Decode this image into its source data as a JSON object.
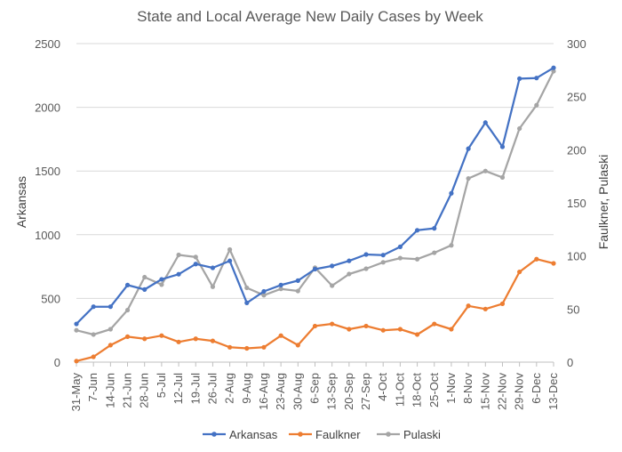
{
  "chart_data": {
    "type": "line",
    "title": "State and Local Average New Daily Cases by Week",
    "ylabel": "Arkansas",
    "y2label": "Faulkner, Pulaski",
    "ylim": [
      0,
      2500
    ],
    "y2lim": [
      0,
      300
    ],
    "yticks": [
      0,
      500,
      1000,
      1500,
      2000,
      2500
    ],
    "y2ticks": [
      0,
      50,
      100,
      150,
      200,
      250,
      300
    ],
    "grid": true,
    "legend_position": "bottom",
    "categories": [
      "31-May",
      "7-Jun",
      "14-Jun",
      "21-Jun",
      "28-Jun",
      "5-Jul",
      "12-Jul",
      "19-Jul",
      "26-Jul",
      "2-Aug",
      "9-Aug",
      "16-Aug",
      "23-Aug",
      "30-Aug",
      "6-Sep",
      "13-Sep",
      "20-Sep",
      "27-Sep",
      "4-Oct",
      "11-Oct",
      "18-Oct",
      "25-Oct",
      "1-Nov",
      "8-Nov",
      "15-Nov",
      "22-Nov",
      "29-Nov",
      "6-Dec",
      "13-Dec"
    ],
    "series": [
      {
        "name": "Arkansas",
        "axis": "left",
        "color": "#4472C4",
        "values": [
          300,
          435,
          435,
          605,
          570,
          650,
          690,
          770,
          740,
          795,
          465,
          555,
          605,
          640,
          730,
          755,
          795,
          845,
          840,
          905,
          1035,
          1050,
          1325,
          1675,
          1880,
          1690,
          2225,
          2230,
          2310
        ]
      },
      {
        "name": "Faulkner",
        "axis": "right",
        "color": "#ED7D31",
        "values": [
          1,
          5,
          16,
          24,
          22,
          25,
          19,
          22,
          20,
          14,
          13,
          14,
          25,
          16,
          34,
          36,
          31,
          34,
          30,
          31,
          26,
          36,
          31,
          53,
          50,
          55,
          85,
          97,
          93
        ]
      },
      {
        "name": "Pulaski",
        "axis": "right",
        "color": "#A5A5A5",
        "values": [
          30,
          26,
          31,
          49,
          80,
          73,
          101,
          99,
          71,
          106,
          70,
          63,
          69,
          67,
          89,
          72,
          83,
          88,
          94,
          98,
          97,
          103,
          110,
          173,
          180,
          174,
          220,
          242,
          274
        ]
      }
    ]
  }
}
